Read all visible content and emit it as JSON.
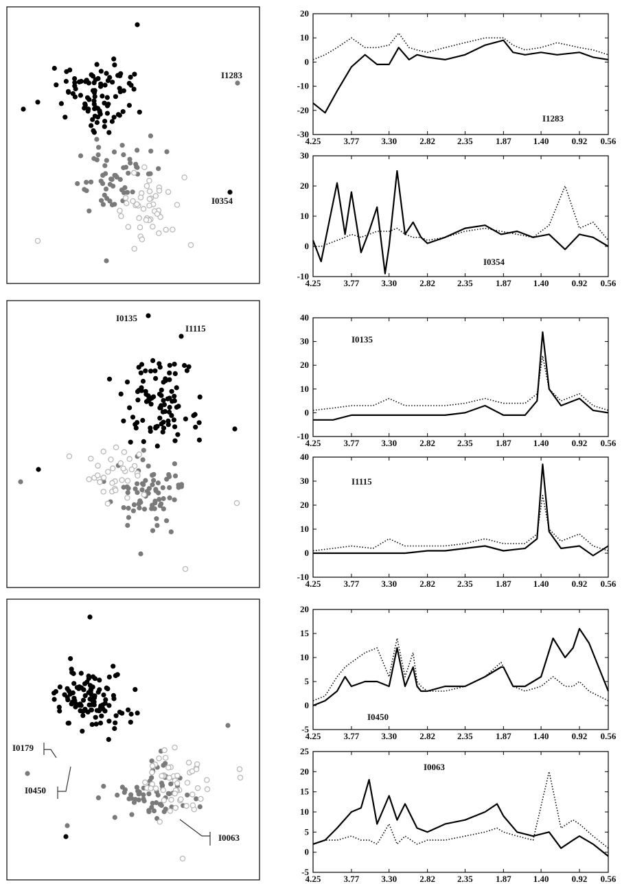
{
  "colors": {
    "black": "#000000",
    "gray": "#7a7a7a",
    "hollow_stroke": "#b8b8b8"
  },
  "chart_data": [
    {
      "type": "scatter",
      "panel": 1,
      "labels": [
        "I1283",
        "I0354"
      ]
    },
    {
      "type": "line",
      "panel": 1,
      "label": "I1283",
      "x_ticks": [
        "4.25",
        "3.77",
        "3.30",
        "2.82",
        "2.35",
        "1.87",
        "1.40",
        "0.92",
        "0.56"
      ],
      "y_ticks": [
        "20",
        "10",
        "0",
        "-10",
        "-20",
        "-30"
      ],
      "ylim": [
        -30,
        20
      ],
      "x": [
        4.25,
        4.1,
        3.95,
        3.77,
        3.6,
        3.45,
        3.3,
        3.18,
        3.05,
        2.95,
        2.82,
        2.6,
        2.35,
        2.1,
        1.87,
        1.75,
        1.6,
        1.4,
        1.2,
        0.92,
        0.75,
        0.56
      ],
      "series": [
        {
          "style": "solid",
          "values": [
            -17,
            -21,
            -12,
            -2,
            3,
            -1,
            -1,
            6,
            1,
            3,
            2,
            1,
            3,
            7,
            9,
            4,
            3,
            4,
            3,
            4,
            2,
            1
          ]
        },
        {
          "style": "dotted",
          "values": [
            1,
            3,
            6,
            10,
            6,
            6,
            7,
            12,
            6,
            5,
            4,
            6,
            8,
            10,
            10,
            7,
            5,
            6,
            8,
            6,
            5,
            3
          ]
        }
      ]
    },
    {
      "type": "line",
      "panel": 1,
      "label": "I0354",
      "x_ticks": [
        "4.25",
        "3.77",
        "3.30",
        "2.82",
        "2.35",
        "1.87",
        "1.40",
        "0.92",
        "0.56"
      ],
      "y_ticks": [
        "30",
        "20",
        "10",
        "0",
        "-10"
      ],
      "ylim": [
        -10,
        30
      ],
      "x": [
        4.25,
        4.15,
        4.05,
        3.95,
        3.85,
        3.77,
        3.65,
        3.55,
        3.45,
        3.35,
        3.3,
        3.2,
        3.1,
        3.0,
        2.9,
        2.82,
        2.6,
        2.35,
        2.1,
        1.9,
        1.7,
        1.5,
        1.3,
        1.1,
        0.92,
        0.75,
        0.56
      ],
      "series": [
        {
          "style": "solid",
          "values": [
            2,
            -5,
            8,
            21,
            4,
            18,
            -2,
            5,
            13,
            -9,
            0,
            25,
            4,
            8,
            3,
            1,
            3,
            6,
            7,
            4,
            5,
            3,
            4,
            -1,
            4,
            3,
            0
          ]
        },
        {
          "style": "dotted",
          "values": [
            0,
            0,
            1,
            2,
            3,
            4,
            3,
            4,
            5,
            5,
            5,
            6,
            4,
            3,
            3,
            2,
            3,
            5,
            6,
            5,
            4,
            3,
            7,
            20,
            6,
            8,
            2
          ]
        }
      ]
    },
    {
      "type": "scatter",
      "panel": 2,
      "labels": [
        "I0135",
        "I1115"
      ]
    },
    {
      "type": "line",
      "panel": 2,
      "label": "I0135",
      "x_ticks": [
        "4.25",
        "3.77",
        "3.30",
        "2.82",
        "2.35",
        "1.87",
        "1.40",
        "0.92",
        "0.56"
      ],
      "y_ticks": [
        "40",
        "30",
        "20",
        "10",
        "0",
        "-10"
      ],
      "ylim": [
        -10,
        40
      ],
      "x": [
        4.25,
        4.0,
        3.77,
        3.5,
        3.3,
        3.1,
        2.82,
        2.6,
        2.35,
        2.1,
        1.87,
        1.6,
        1.45,
        1.38,
        1.3,
        1.15,
        0.92,
        0.75,
        0.56
      ],
      "series": [
        {
          "style": "solid",
          "values": [
            -3,
            -3,
            -1,
            -1,
            -1,
            -1,
            -1,
            -1,
            0,
            3,
            -1,
            -1,
            5,
            34,
            10,
            3,
            6,
            1,
            0
          ]
        },
        {
          "style": "dotted",
          "values": [
            1,
            2,
            3,
            3,
            6,
            3,
            3,
            3,
            4,
            6,
            4,
            4,
            8,
            24,
            10,
            5,
            8,
            3,
            1
          ]
        }
      ]
    },
    {
      "type": "line",
      "panel": 2,
      "label": "I1115",
      "x_ticks": [
        "4.25",
        "3.77",
        "3.30",
        "2.82",
        "2.35",
        "1.87",
        "1.40",
        "0.92",
        "0.56"
      ],
      "y_ticks": [
        "40",
        "30",
        "20",
        "10",
        "0",
        "-10"
      ],
      "ylim": [
        -10,
        40
      ],
      "x": [
        4.25,
        4.0,
        3.77,
        3.5,
        3.3,
        3.1,
        2.82,
        2.6,
        2.35,
        2.1,
        1.87,
        1.6,
        1.45,
        1.38,
        1.3,
        1.15,
        0.92,
        0.75,
        0.56
      ],
      "series": [
        {
          "style": "solid",
          "values": [
            0,
            0,
            0,
            0,
            0,
            0,
            1,
            1,
            2,
            3,
            1,
            2,
            6,
            37,
            9,
            2,
            3,
            -1,
            3
          ]
        },
        {
          "style": "dotted",
          "values": [
            1,
            2,
            3,
            2,
            6,
            3,
            3,
            3,
            4,
            6,
            4,
            4,
            8,
            24,
            10,
            5,
            8,
            3,
            1
          ]
        }
      ]
    },
    {
      "type": "scatter",
      "panel": 3,
      "labels": [
        "I0179",
        "I0450",
        "I0063"
      ]
    },
    {
      "type": "line",
      "panel": 3,
      "label": "I0450",
      "x_ticks": [
        "4.25",
        "3.77",
        "3.30",
        "2.82",
        "2.35",
        "1.87",
        "1.40",
        "0.92",
        "0.56"
      ],
      "y_ticks": [
        "20",
        "15",
        "10",
        "5",
        "0",
        "-5"
      ],
      "ylim": [
        -5,
        20
      ],
      "x": [
        4.25,
        4.1,
        3.95,
        3.85,
        3.77,
        3.6,
        3.45,
        3.3,
        3.2,
        3.1,
        3.0,
        2.95,
        2.9,
        2.82,
        2.6,
        2.35,
        2.1,
        1.9,
        1.87,
        1.75,
        1.6,
        1.4,
        1.25,
        1.1,
        1.0,
        0.92,
        0.8,
        0.56
      ],
      "series": [
        {
          "style": "solid",
          "values": [
            0,
            1,
            3,
            6,
            4,
            5,
            5,
            4,
            12,
            4,
            8,
            4,
            3,
            3,
            4,
            4,
            6,
            8,
            8,
            4,
            4,
            6,
            14,
            10,
            12,
            16,
            13,
            3
          ]
        },
        {
          "style": "dotted",
          "values": [
            1,
            2,
            6,
            8,
            9,
            11,
            12,
            6,
            14,
            6,
            11,
            5,
            4,
            3,
            3,
            4,
            6,
            9,
            8,
            4,
            3,
            4,
            6,
            4,
            4,
            5,
            3,
            1
          ]
        }
      ]
    },
    {
      "type": "line",
      "panel": 3,
      "label": "I0063",
      "x_ticks": [
        "4.25",
        "3.77",
        "3.30",
        "2.82",
        "2.35",
        "1.87",
        "1.40",
        "0.92",
        "0.56"
      ],
      "y_ticks": [
        "25",
        "20",
        "15",
        "10",
        "5",
        "0",
        "-5"
      ],
      "ylim": [
        -5,
        25
      ],
      "x": [
        4.25,
        4.1,
        3.95,
        3.77,
        3.65,
        3.55,
        3.45,
        3.3,
        3.2,
        3.1,
        2.95,
        2.82,
        2.6,
        2.35,
        2.1,
        1.95,
        1.87,
        1.7,
        1.5,
        1.3,
        1.15,
        1.0,
        0.92,
        0.75,
        0.56
      ],
      "series": [
        {
          "style": "solid",
          "values": [
            2,
            3,
            6,
            10,
            11,
            18,
            7,
            14,
            8,
            12,
            6,
            5,
            7,
            8,
            10,
            12,
            9,
            5,
            4,
            5,
            1,
            3,
            4,
            2,
            -1
          ]
        },
        {
          "style": "dotted",
          "values": [
            2,
            3,
            3,
            4,
            3,
            3,
            2,
            7,
            2,
            4,
            2,
            3,
            3,
            4,
            5,
            6,
            5,
            4,
            3,
            20,
            6,
            8,
            7,
            4,
            1
          ]
        }
      ]
    }
  ],
  "panels": {
    "p1": {
      "scatter": {
        "labels": [
          "I1283",
          "I0354"
        ]
      },
      "top": {
        "label": "I1283"
      },
      "bottom": {
        "label": "I0354"
      }
    },
    "p2": {
      "scatter": {
        "labels": [
          "I0135",
          "I1115"
        ]
      },
      "top": {
        "label": "I0135"
      },
      "bottom": {
        "label": "I1115"
      }
    },
    "p3": {
      "scatter": {
        "labels": [
          "I0179",
          "I0450",
          "I0063"
        ]
      },
      "top": {
        "label": "I0450"
      },
      "bottom": {
        "label": "I0063"
      }
    }
  }
}
